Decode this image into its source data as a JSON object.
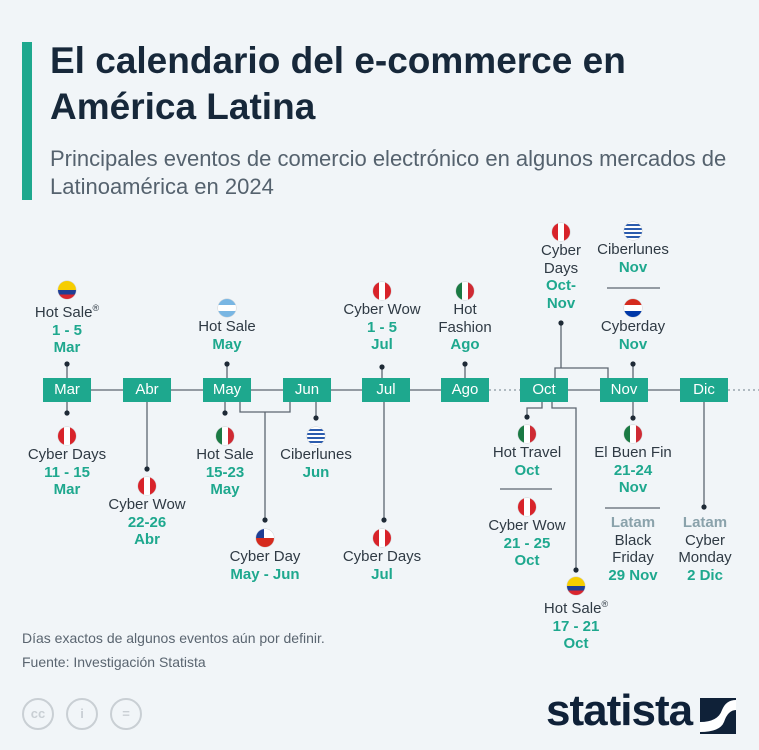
{
  "header": {
    "title": "El calendario del e-commerce en América Latina",
    "subtitle": "Principales eventos de comercio electrónico en algunos mercados de Latinoamérica en 2024"
  },
  "colors": {
    "accent": "#1ea88e",
    "title": "#17283a",
    "latam_label": "#8aa2ab",
    "background": "#f1f5f8"
  },
  "months": [
    "Mar",
    "Abr",
    "May",
    "Jun",
    "Jul",
    "Ago",
    "Oct",
    "Nov",
    "Dic"
  ],
  "events": [
    {
      "flag": "colombia",
      "name": [
        "Hot Sale"
      ],
      "mark": "®",
      "dates": [
        "1 - 5",
        "Mar"
      ]
    },
    {
      "flag": "argentina",
      "name": [
        "Hot Sale"
      ],
      "dates": [
        "May"
      ]
    },
    {
      "flag": "peru",
      "name": [
        "Cyber Wow"
      ],
      "dates": [
        "1 - 5",
        "Jul"
      ]
    },
    {
      "flag": "mexico",
      "name": [
        "Hot",
        "Fashion"
      ],
      "dates": [
        "Ago"
      ]
    },
    {
      "flag": "peru",
      "name": [
        "Cyber",
        "Days"
      ],
      "dates": [
        "Oct-",
        "Nov"
      ]
    },
    {
      "flag": "uruguay",
      "name": [
        "Ciberlunes"
      ],
      "dates": [
        "Nov"
      ]
    },
    {
      "flag": "paraguay",
      "name": [
        "Cyberday"
      ],
      "dates": [
        "Nov"
      ]
    },
    {
      "flag": "peru",
      "name": [
        "Cyber Days"
      ],
      "dates": [
        "11 - 15",
        "Mar"
      ]
    },
    {
      "flag": "peru",
      "name": [
        "Cyber Wow"
      ],
      "dates": [
        "22-26",
        "Abr"
      ]
    },
    {
      "flag": "mexico",
      "name": [
        "Hot Sale"
      ],
      "dates": [
        "15-23",
        "May"
      ]
    },
    {
      "flag": "chile",
      "name": [
        "Cyber Day"
      ],
      "dates": [
        "May - Jun"
      ]
    },
    {
      "flag": "uruguay",
      "name": [
        "Ciberlunes"
      ],
      "dates": [
        "Jun"
      ]
    },
    {
      "flag": "peru",
      "name": [
        "Cyber Days"
      ],
      "dates": [
        "Jul"
      ]
    },
    {
      "flag": "mexico",
      "name": [
        "Hot Travel"
      ],
      "dates": [
        "Oct"
      ]
    },
    {
      "flag": "peru",
      "name": [
        "Cyber Wow"
      ],
      "dates": [
        "21 - 25",
        "Oct"
      ]
    },
    {
      "flag": "colombia",
      "name": [
        "Hot Sale"
      ],
      "mark": "®",
      "dates": [
        "17 - 21",
        "Oct"
      ]
    },
    {
      "flag": "mexico",
      "name": [
        "El Buen Fin"
      ],
      "dates": [
        "21-24",
        "Nov"
      ]
    },
    {
      "flag": null,
      "prefix": "Latam",
      "name": [
        "Black",
        "Friday"
      ],
      "dates": [
        "29 Nov"
      ]
    },
    {
      "flag": null,
      "prefix": "Latam",
      "name": [
        "Cyber",
        "Monday"
      ],
      "dates": [
        "2 Dic"
      ]
    }
  ],
  "footer": {
    "note": "Días exactos de algunos eventos aún por definir.",
    "source": "Fuente: Investigación Statista",
    "license_icons": [
      "cc-icon",
      "attribution-icon",
      "no-derivatives-icon"
    ],
    "brand": "statista"
  }
}
